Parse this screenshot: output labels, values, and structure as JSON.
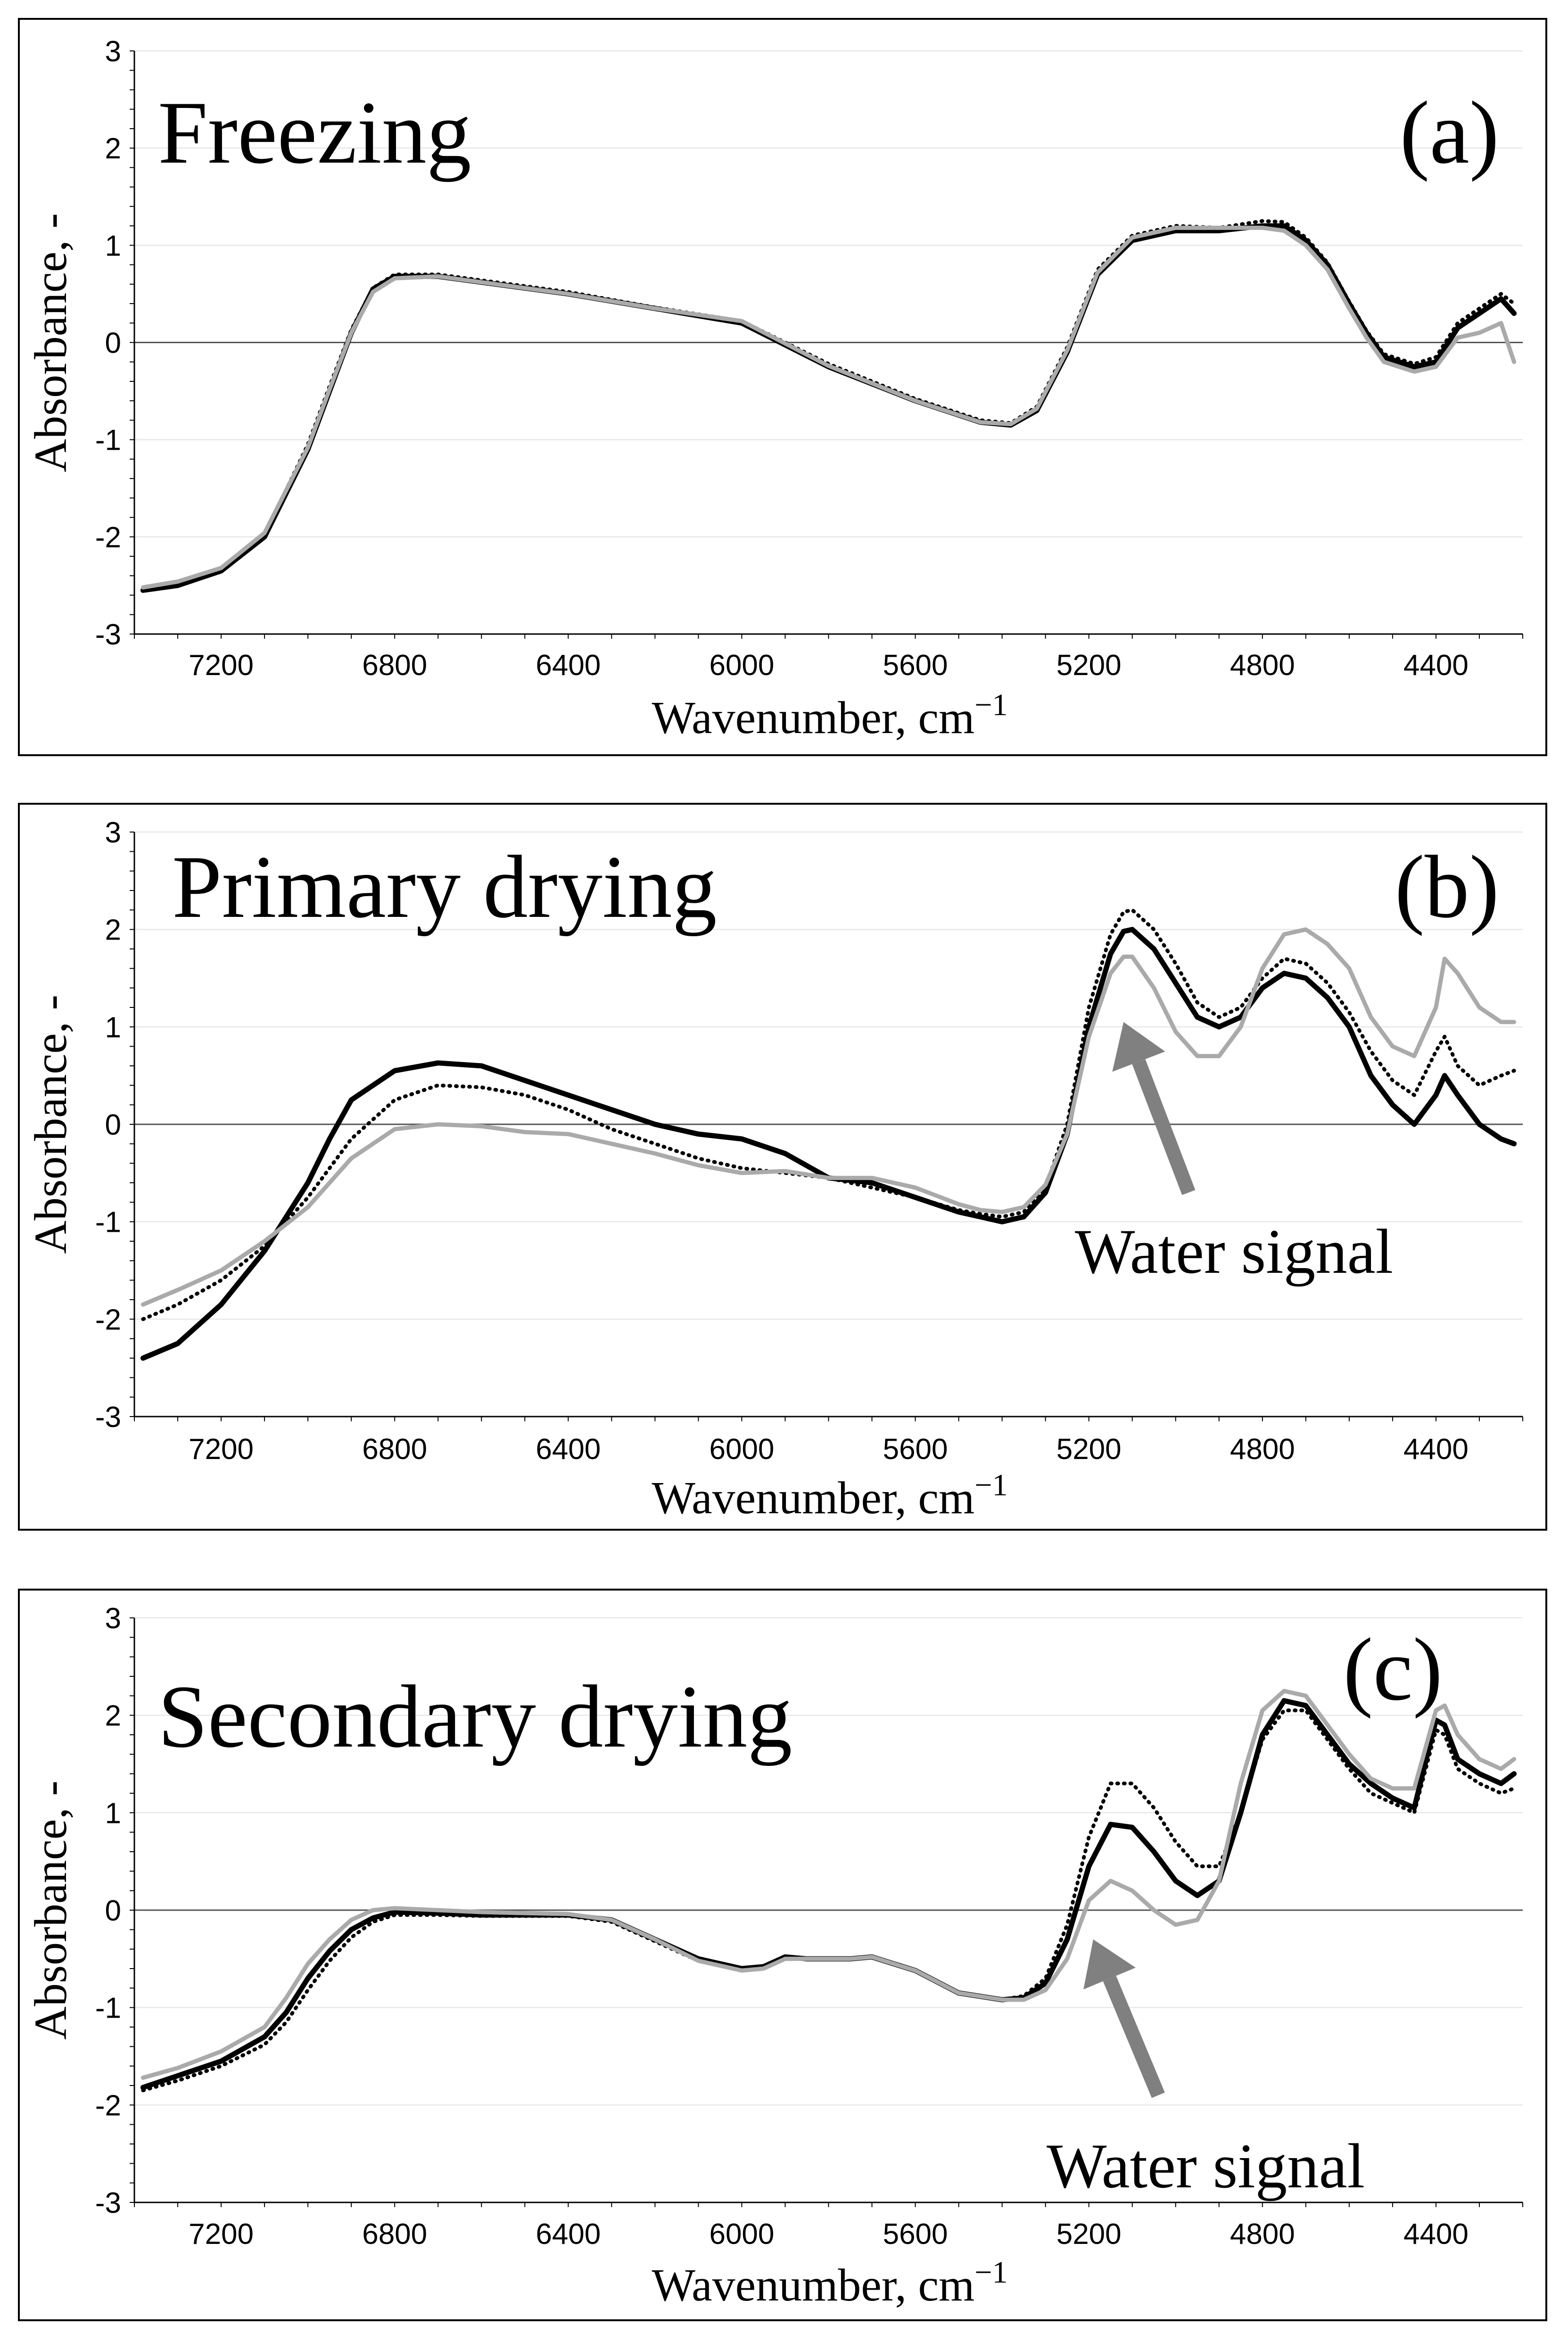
{
  "chart_data": [
    {
      "type": "line",
      "panel_label": "(a)",
      "title": "Freezing",
      "xlabel": "Wavenumber, cm",
      "xlabel_sup": "−1",
      "ylabel": "Absorbance, -",
      "xlim": [
        7400,
        4200
      ],
      "ylim": [
        -3,
        3
      ],
      "xticks": [
        "7200",
        "6800",
        "6400",
        "6000",
        "5600",
        "5200",
        "4800",
        "4400"
      ],
      "xtick_values": [
        7200,
        6800,
        6400,
        6000,
        5600,
        5200,
        4800,
        4400
      ],
      "yticks": [
        "3",
        "2",
        "1",
        "0",
        "-1",
        "-2",
        "-3"
      ],
      "ytick_values": [
        3,
        2,
        1,
        0,
        -1,
        -2,
        -3
      ],
      "annotation": "",
      "series": [
        {
          "name": "black-solid",
          "color": "#000000",
          "style": "solid",
          "x": [
            7380,
            7300,
            7200,
            7100,
            7000,
            6950,
            6900,
            6850,
            6800,
            6700,
            6600,
            6400,
            6200,
            6000,
            5800,
            5600,
            5450,
            5380,
            5320,
            5250,
            5180,
            5100,
            5000,
            4900,
            4800,
            4750,
            4700,
            4650,
            4600,
            4560,
            4520,
            4450,
            4400,
            4350,
            4300,
            4250,
            4220
          ],
          "y": [
            -2.55,
            -2.5,
            -2.35,
            -2.0,
            -1.1,
            -0.5,
            0.1,
            0.55,
            0.68,
            0.68,
            0.62,
            0.5,
            0.35,
            0.2,
            -0.25,
            -0.6,
            -0.82,
            -0.85,
            -0.7,
            -0.1,
            0.7,
            1.05,
            1.15,
            1.15,
            1.2,
            1.2,
            1.05,
            0.8,
            0.4,
            0.1,
            -0.15,
            -0.25,
            -0.2,
            0.15,
            0.3,
            0.45,
            0.3
          ]
        },
        {
          "name": "black-dotted",
          "color": "#000000",
          "style": "dotted",
          "x": [
            7380,
            7300,
            7200,
            7100,
            7000,
            6950,
            6900,
            6850,
            6800,
            6700,
            6600,
            6400,
            6200,
            6000,
            5800,
            5600,
            5450,
            5380,
            5320,
            5250,
            5180,
            5100,
            5000,
            4900,
            4800,
            4750,
            4700,
            4650,
            4600,
            4560,
            4520,
            4450,
            4400,
            4350,
            4300,
            4250,
            4220
          ],
          "y": [
            -2.55,
            -2.48,
            -2.33,
            -1.98,
            -1.05,
            -0.45,
            0.13,
            0.56,
            0.7,
            0.7,
            0.64,
            0.52,
            0.36,
            0.22,
            -0.22,
            -0.58,
            -0.8,
            -0.83,
            -0.66,
            -0.05,
            0.75,
            1.1,
            1.2,
            1.18,
            1.25,
            1.24,
            1.08,
            0.82,
            0.42,
            0.12,
            -0.12,
            -0.22,
            -0.15,
            0.2,
            0.35,
            0.5,
            0.4
          ]
        },
        {
          "name": "gray-solid",
          "color": "#aaaaaa",
          "style": "solid",
          "x": [
            7380,
            7300,
            7200,
            7100,
            7000,
            6950,
            6900,
            6850,
            6800,
            6700,
            6600,
            6400,
            6200,
            6000,
            5800,
            5600,
            5450,
            5380,
            5320,
            5250,
            5180,
            5100,
            5000,
            4900,
            4800,
            4750,
            4700,
            4650,
            4600,
            4560,
            4520,
            4450,
            4400,
            4350,
            4300,
            4250,
            4220
          ],
          "y": [
            -2.52,
            -2.46,
            -2.32,
            -1.96,
            -1.08,
            -0.48,
            0.1,
            0.52,
            0.66,
            0.68,
            0.62,
            0.5,
            0.35,
            0.22,
            -0.24,
            -0.6,
            -0.82,
            -0.84,
            -0.68,
            -0.08,
            0.72,
            1.08,
            1.18,
            1.18,
            1.18,
            1.15,
            1.0,
            0.75,
            0.35,
            0.05,
            -0.2,
            -0.3,
            -0.25,
            0.05,
            0.1,
            0.2,
            -0.2
          ]
        }
      ]
    },
    {
      "type": "line",
      "panel_label": "(b)",
      "title": "Primary drying",
      "xlabel": "Wavenumber, cm",
      "xlabel_sup": "−1",
      "ylabel": "Absorbance, -",
      "xlim": [
        7400,
        4200
      ],
      "ylim": [
        -3,
        3
      ],
      "xticks": [
        "7200",
        "6800",
        "6400",
        "6000",
        "5600",
        "5200",
        "4800",
        "4400"
      ],
      "xtick_values": [
        7200,
        6800,
        6400,
        6000,
        5600,
        5200,
        4800,
        4400
      ],
      "yticks": [
        "3",
        "2",
        "1",
        "0",
        "-1",
        "-2",
        "-3"
      ],
      "ytick_values": [
        3,
        2,
        1,
        0,
        -1,
        -2,
        -3
      ],
      "annotation": "Water signal",
      "arrow_from": [
        4970,
        -0.7
      ],
      "arrow_to": [
        5120,
        1.05
      ],
      "series": [
        {
          "name": "black-solid",
          "color": "#000000",
          "style": "solid",
          "x": [
            7380,
            7300,
            7200,
            7100,
            7000,
            6950,
            6900,
            6800,
            6700,
            6600,
            6500,
            6400,
            6300,
            6200,
            6100,
            6000,
            5900,
            5800,
            5700,
            5600,
            5500,
            5450,
            5400,
            5350,
            5300,
            5250,
            5200,
            5150,
            5120,
            5100,
            5050,
            5000,
            4950,
            4900,
            4850,
            4800,
            4750,
            4700,
            4650,
            4600,
            4550,
            4500,
            4450,
            4400,
            4380,
            4350,
            4300,
            4250,
            4220
          ],
          "y": [
            -2.4,
            -2.25,
            -1.85,
            -1.3,
            -0.6,
            -0.15,
            0.25,
            0.55,
            0.63,
            0.6,
            0.45,
            0.3,
            0.15,
            0.0,
            -0.1,
            -0.15,
            -0.3,
            -0.55,
            -0.6,
            -0.75,
            -0.9,
            -0.95,
            -1.0,
            -0.95,
            -0.7,
            -0.1,
            1.0,
            1.75,
            1.98,
            2.0,
            1.8,
            1.45,
            1.1,
            1.0,
            1.1,
            1.4,
            1.55,
            1.5,
            1.3,
            1.0,
            0.5,
            0.2,
            0.0,
            0.3,
            0.5,
            0.3,
            0.0,
            -0.15,
            -0.2
          ]
        },
        {
          "name": "black-dotted",
          "color": "#000000",
          "style": "dotted",
          "x": [
            7380,
            7300,
            7200,
            7100,
            7000,
            6950,
            6900,
            6800,
            6700,
            6600,
            6500,
            6400,
            6300,
            6200,
            6100,
            6000,
            5900,
            5800,
            5700,
            5600,
            5500,
            5450,
            5400,
            5350,
            5300,
            5250,
            5200,
            5150,
            5120,
            5100,
            5050,
            5000,
            4950,
            4900,
            4850,
            4800,
            4750,
            4700,
            4650,
            4600,
            4550,
            4500,
            4450,
            4400,
            4380,
            4350,
            4300,
            4250,
            4220
          ],
          "y": [
            -2.0,
            -1.85,
            -1.6,
            -1.25,
            -0.75,
            -0.45,
            -0.15,
            0.25,
            0.4,
            0.38,
            0.3,
            0.15,
            -0.05,
            -0.2,
            -0.35,
            -0.45,
            -0.5,
            -0.55,
            -0.65,
            -0.75,
            -0.88,
            -0.92,
            -0.95,
            -0.9,
            -0.65,
            0.0,
            1.2,
            1.95,
            2.18,
            2.2,
            2.0,
            1.65,
            1.25,
            1.1,
            1.2,
            1.5,
            1.7,
            1.65,
            1.45,
            1.15,
            0.75,
            0.45,
            0.3,
            0.75,
            0.9,
            0.6,
            0.4,
            0.5,
            0.55
          ]
        },
        {
          "name": "gray-solid",
          "color": "#aaaaaa",
          "style": "solid",
          "x": [
            7380,
            7300,
            7200,
            7100,
            7000,
            6950,
            6900,
            6800,
            6700,
            6600,
            6500,
            6400,
            6300,
            6200,
            6100,
            6000,
            5900,
            5800,
            5700,
            5600,
            5500,
            5450,
            5400,
            5350,
            5300,
            5250,
            5200,
            5150,
            5120,
            5100,
            5050,
            5000,
            4950,
            4900,
            4850,
            4800,
            4750,
            4700,
            4650,
            4600,
            4550,
            4500,
            4450,
            4400,
            4380,
            4350,
            4300,
            4250,
            4220
          ],
          "y": [
            -1.85,
            -1.7,
            -1.5,
            -1.2,
            -0.85,
            -0.6,
            -0.35,
            -0.05,
            0.0,
            -0.02,
            -0.08,
            -0.1,
            -0.2,
            -0.3,
            -0.42,
            -0.5,
            -0.48,
            -0.55,
            -0.55,
            -0.65,
            -0.82,
            -0.88,
            -0.9,
            -0.85,
            -0.62,
            -0.1,
            0.9,
            1.55,
            1.72,
            1.72,
            1.4,
            0.95,
            0.7,
            0.7,
            1.0,
            1.6,
            1.95,
            2.0,
            1.85,
            1.6,
            1.1,
            0.8,
            0.7,
            1.2,
            1.7,
            1.55,
            1.2,
            1.05,
            1.05
          ]
        }
      ]
    },
    {
      "type": "line",
      "panel_label": "(c)",
      "title": "Secondary drying",
      "xlabel": "Wavenumber, cm",
      "xlabel_sup": "−1",
      "ylabel": "Absorbance, -",
      "xlim": [
        7400,
        4200
      ],
      "ylim": [
        -3,
        3
      ],
      "xticks": [
        "7200",
        "6800",
        "6400",
        "6000",
        "5600",
        "5200",
        "4800",
        "4400"
      ],
      "xtick_values": [
        7200,
        6800,
        6400,
        6000,
        5600,
        5200,
        4800,
        4400
      ],
      "yticks": [
        "3",
        "2",
        "1",
        "0",
        "-1",
        "-2",
        "-3"
      ],
      "ytick_values": [
        3,
        2,
        1,
        0,
        -1,
        -2,
        -3
      ],
      "annotation": "Water signal",
      "arrow_from": [
        5040,
        -1.9
      ],
      "arrow_to": [
        5190,
        -0.3
      ],
      "series": [
        {
          "name": "black-solid",
          "color": "#000000",
          "style": "solid",
          "x": [
            7380,
            7300,
            7200,
            7100,
            7050,
            7000,
            6950,
            6900,
            6850,
            6800,
            6700,
            6600,
            6500,
            6400,
            6300,
            6200,
            6100,
            6000,
            5950,
            5900,
            5850,
            5800,
            5750,
            5700,
            5650,
            5600,
            5500,
            5400,
            5350,
            5300,
            5250,
            5200,
            5150,
            5100,
            5050,
            5000,
            4950,
            4900,
            4850,
            4800,
            4750,
            4700,
            4650,
            4600,
            4550,
            4500,
            4450,
            4400,
            4380,
            4350,
            4300,
            4250,
            4220
          ],
          "y": [
            -1.82,
            -1.7,
            -1.55,
            -1.3,
            -1.05,
            -0.7,
            -0.42,
            -0.2,
            -0.08,
            -0.02,
            -0.03,
            -0.05,
            -0.05,
            -0.05,
            -0.1,
            -0.3,
            -0.5,
            -0.6,
            -0.58,
            -0.48,
            -0.5,
            -0.5,
            -0.5,
            -0.48,
            -0.55,
            -0.62,
            -0.85,
            -0.92,
            -0.9,
            -0.75,
            -0.3,
            0.45,
            0.88,
            0.85,
            0.6,
            0.3,
            0.15,
            0.3,
            1.0,
            1.8,
            2.15,
            2.1,
            1.8,
            1.5,
            1.3,
            1.15,
            1.05,
            1.95,
            1.9,
            1.55,
            1.4,
            1.3,
            1.4
          ]
        },
        {
          "name": "black-dotted",
          "color": "#000000",
          "style": "dotted",
          "x": [
            7380,
            7300,
            7200,
            7100,
            7050,
            7000,
            6950,
            6900,
            6850,
            6800,
            6700,
            6600,
            6500,
            6400,
            6300,
            6200,
            6100,
            6000,
            5950,
            5900,
            5850,
            5800,
            5750,
            5700,
            5650,
            5600,
            5500,
            5400,
            5350,
            5300,
            5250,
            5200,
            5150,
            5100,
            5050,
            5000,
            4950,
            4900,
            4850,
            4800,
            4750,
            4700,
            4650,
            4600,
            4550,
            4500,
            4450,
            4400,
            4380,
            4350,
            4300,
            4250,
            4220
          ],
          "y": [
            -1.85,
            -1.75,
            -1.6,
            -1.38,
            -1.15,
            -0.82,
            -0.52,
            -0.28,
            -0.12,
            -0.05,
            -0.05,
            -0.06,
            -0.06,
            -0.06,
            -0.12,
            -0.32,
            -0.52,
            -0.6,
            -0.58,
            -0.48,
            -0.5,
            -0.5,
            -0.5,
            -0.48,
            -0.55,
            -0.62,
            -0.85,
            -0.92,
            -0.88,
            -0.7,
            -0.15,
            0.75,
            1.3,
            1.3,
            1.05,
            0.7,
            0.45,
            0.45,
            1.0,
            1.75,
            2.05,
            2.05,
            1.75,
            1.45,
            1.2,
            1.1,
            1.0,
            1.85,
            1.8,
            1.45,
            1.3,
            1.2,
            1.25
          ]
        },
        {
          "name": "gray-solid",
          "color": "#aaaaaa",
          "style": "solid",
          "x": [
            7380,
            7300,
            7200,
            7100,
            7050,
            7000,
            6950,
            6900,
            6850,
            6800,
            6700,
            6600,
            6500,
            6400,
            6300,
            6200,
            6100,
            6000,
            5950,
            5900,
            5850,
            5800,
            5750,
            5700,
            5650,
            5600,
            5500,
            5400,
            5350,
            5300,
            5250,
            5200,
            5150,
            5100,
            5050,
            5000,
            4950,
            4900,
            4850,
            4800,
            4750,
            4700,
            4650,
            4600,
            4550,
            4500,
            4450,
            4400,
            4380,
            4350,
            4300,
            4250,
            4220
          ],
          "y": [
            -1.72,
            -1.62,
            -1.45,
            -1.2,
            -0.9,
            -0.55,
            -0.3,
            -0.1,
            0.0,
            0.02,
            0.0,
            -0.02,
            -0.03,
            -0.04,
            -0.1,
            -0.3,
            -0.52,
            -0.62,
            -0.6,
            -0.5,
            -0.5,
            -0.5,
            -0.5,
            -0.48,
            -0.55,
            -0.62,
            -0.85,
            -0.92,
            -0.92,
            -0.82,
            -0.5,
            0.1,
            0.3,
            0.2,
            0.0,
            -0.15,
            -0.1,
            0.3,
            1.3,
            2.05,
            2.25,
            2.2,
            1.9,
            1.6,
            1.35,
            1.25,
            1.25,
            2.05,
            2.1,
            1.8,
            1.55,
            1.45,
            1.55
          ]
        }
      ]
    }
  ]
}
